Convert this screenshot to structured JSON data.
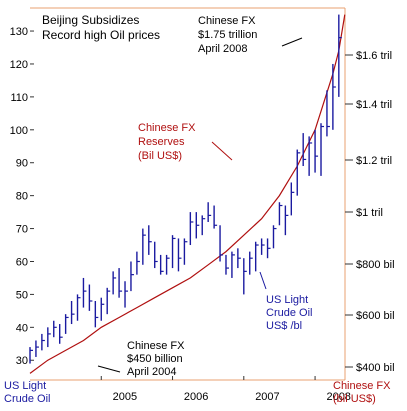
{
  "chart_data": {
    "type": "line",
    "title": "Beijing Subsidizes\nRecord high Oil prices",
    "x_ticks": [
      "2005",
      "2006",
      "2007",
      "2008"
    ],
    "y_left": {
      "ticks": [
        30,
        40,
        50,
        60,
        70,
        80,
        90,
        100,
        110,
        120,
        130
      ],
      "range": [
        24,
        137
      ]
    },
    "y_right": {
      "ticks": [
        "$400 bil",
        "$600 bil",
        "$800 bil",
        "$1 tril",
        "$1.2 tril",
        "$1.4 tril",
        "$1.6 tril"
      ]
    },
    "label_left_axis": "US Light\nCrude Oil",
    "label_right_axis": "Chinese FX\n(bil US$)",
    "series": [
      {
        "name": "Chinese FX Reserves (Bil US$)",
        "color": "#b01010",
        "style": "line",
        "points": [
          [
            "2004-01",
            26
          ],
          [
            "2004-04",
            30
          ],
          [
            "2004-07",
            33
          ],
          [
            "2004-10",
            36
          ],
          [
            "2005-01",
            40
          ],
          [
            "2005-04",
            43
          ],
          [
            "2005-07",
            46
          ],
          [
            "2005-10",
            49
          ],
          [
            "2006-01",
            52
          ],
          [
            "2006-04",
            55
          ],
          [
            "2006-07",
            59
          ],
          [
            "2006-10",
            63
          ],
          [
            "2007-01",
            68
          ],
          [
            "2007-04",
            73
          ],
          [
            "2007-07",
            80
          ],
          [
            "2007-10",
            89
          ],
          [
            "2008-01",
            100
          ],
          [
            "2008-04",
            117
          ],
          [
            "2008-05",
            124
          ],
          [
            "2008-06",
            135
          ]
        ]
      },
      {
        "name": "US Light Crude Oil US$ /bl",
        "color": "#1a1aa0",
        "style": "hlc_bars",
        "bars": [
          [
            "2004-01",
            34,
            29,
            33
          ],
          [
            "2004-02",
            36,
            31,
            34
          ],
          [
            "2004-03",
            38,
            33,
            36
          ],
          [
            "2004-04",
            40,
            34,
            38
          ],
          [
            "2004-05",
            42,
            37,
            40
          ],
          [
            "2004-06",
            41,
            35,
            37
          ],
          [
            "2004-07",
            44,
            38,
            43
          ],
          [
            "2004-08",
            48,
            41,
            44
          ],
          [
            "2004-09",
            50,
            42,
            49
          ],
          [
            "2004-10",
            55,
            46,
            51
          ],
          [
            "2004-11",
            53,
            45,
            48
          ],
          [
            "2004-12",
            48,
            40,
            43
          ],
          [
            "2005-01",
            49,
            42,
            47
          ],
          [
            "2005-02",
            52,
            44,
            51
          ],
          [
            "2005-03",
            57,
            50,
            55
          ],
          [
            "2005-04",
            58,
            49,
            51
          ],
          [
            "2005-05",
            54,
            46,
            51
          ],
          [
            "2005-06",
            60,
            51,
            56
          ],
          [
            "2005-07",
            63,
            56,
            60
          ],
          [
            "2005-08",
            70,
            59,
            68
          ],
          [
            "2005-09",
            71,
            62,
            66
          ],
          [
            "2005-10",
            66,
            58,
            60
          ],
          [
            "2005-11",
            62,
            56,
            57
          ],
          [
            "2005-12",
            62,
            56,
            61
          ],
          [
            "2006-01",
            68,
            58,
            67
          ],
          [
            "2006-02",
            67,
            57,
            61
          ],
          [
            "2006-03",
            67,
            59,
            66
          ],
          [
            "2006-04",
            75,
            65,
            72
          ],
          [
            "2006-05",
            75,
            67,
            71
          ],
          [
            "2006-06",
            74,
            68,
            73
          ],
          [
            "2006-07",
            78,
            72,
            74
          ],
          [
            "2006-08",
            77,
            70,
            71
          ],
          [
            "2006-09",
            71,
            60,
            62
          ],
          [
            "2006-10",
            62,
            56,
            58
          ],
          [
            "2006-11",
            63,
            55,
            62
          ],
          [
            "2006-12",
            64,
            58,
            61
          ],
          [
            "2007-01",
            61,
            50,
            57
          ],
          [
            "2007-02",
            63,
            56,
            61
          ],
          [
            "2007-03",
            66,
            57,
            65
          ],
          [
            "2007-04",
            67,
            62,
            65
          ],
          [
            "2007-05",
            67,
            61,
            64
          ],
          [
            "2007-06",
            71,
            64,
            70
          ],
          [
            "2007-07",
            78,
            71,
            77
          ],
          [
            "2007-08",
            77,
            68,
            74
          ],
          [
            "2007-09",
            84,
            74,
            81
          ],
          [
            "2007-10",
            94,
            80,
            93
          ],
          [
            "2007-11",
            99,
            89,
            91
          ],
          [
            "2007-12",
            98,
            86,
            96
          ],
          [
            "2008-01",
            100,
            87,
            92
          ],
          [
            "2008-02",
            102,
            86,
            101
          ],
          [
            "2008-03",
            112,
            98,
            101
          ],
          [
            "2008-04",
            120,
            100,
            113
          ],
          [
            "2008-05",
            135,
            110,
            128
          ]
        ]
      }
    ],
    "annotations": {
      "fx_top": "Chinese FX\n$1.75 trillion\nApril 2008",
      "fx_reserves": "Chinese FX\nReserves\n(Bil US$)",
      "fx_2004": "Chinese FX\n$450 billion\nApril 2004",
      "oil_series": "US Light\nCrude Oil\nUS$ /bl"
    }
  }
}
